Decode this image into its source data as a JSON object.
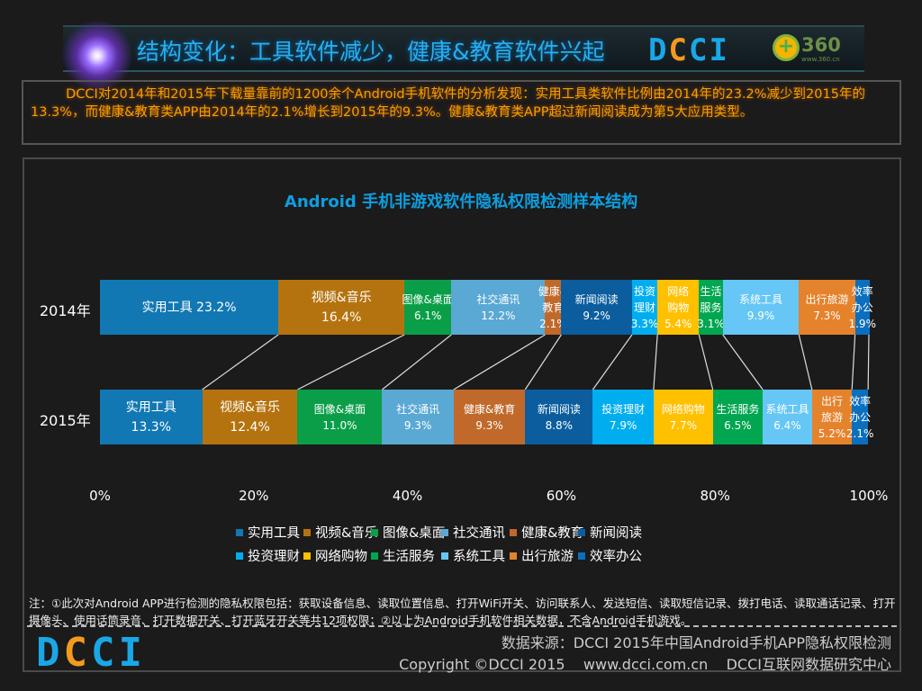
{
  "header": {
    "title": "结构变化：工具软件减少，健康&教育软件兴起",
    "logo_dcci": "DCCI",
    "logo_360": "360",
    "logo_360_url": "www.360.cn"
  },
  "summary": "DCCI对2014年和2015年下载量靠前的1200余个Android手机软件的分析发现：实用工具类软件比例由2014年的23.2%减少到2015年的13.3%，而健康&教育类APP由2014年的2.1%增长到2015年的9.3%。健康&教育类APP超过新闻阅读成为第5大应用类型。",
  "chart_data": {
    "type": "bar",
    "orientation": "horizontal-stacked-100",
    "title": "Android 手机非游戏软件隐私权限检测样本结构",
    "categories": [
      "2014年",
      "2015年"
    ],
    "xlim": [
      0,
      100
    ],
    "xticks": [
      "0%",
      "20%",
      "40%",
      "60%",
      "80%",
      "100%"
    ],
    "legend_position": "bottom",
    "grid": false,
    "series": [
      {
        "name": "实用工具",
        "color": "#1178b3",
        "values": [
          23.2,
          13.3
        ],
        "labels": [
          [
            "实用工具 23.2%"
          ],
          [
            "实用工具",
            "13.3%"
          ]
        ]
      },
      {
        "name": "视频&音乐",
        "color": "#b5730f",
        "values": [
          16.4,
          12.4
        ],
        "labels": [
          [
            "视频&音乐",
            "16.4%"
          ],
          [
            "视频&音乐",
            "12.4%"
          ]
        ]
      },
      {
        "name": "图像&桌面",
        "color": "#0b9e48",
        "values": [
          6.1,
          11.0
        ],
        "labels": [
          [
            "图像&桌面",
            "6.1%"
          ],
          [
            "图像&桌面",
            "11.0%"
          ]
        ]
      },
      {
        "name": "社交通讯",
        "color": "#5aa8d4",
        "values": [
          12.2,
          9.3
        ],
        "labels": [
          [
            "社交通讯",
            "12.2%"
          ],
          [
            "社交通讯",
            "9.3%"
          ]
        ]
      },
      {
        "name": "健康&教育",
        "color": "#c0692a",
        "values": [
          2.1,
          9.3
        ],
        "labels": [
          [
            "健康&",
            "教育",
            "2.1%"
          ],
          [
            "健康&教育",
            "9.3%"
          ]
        ]
      },
      {
        "name": "新闻阅读",
        "color": "#0b5d9e",
        "values": [
          9.2,
          8.8
        ],
        "labels": [
          [
            "新闻阅读",
            "9.2%"
          ],
          [
            "新闻阅读",
            "8.8%"
          ]
        ]
      },
      {
        "name": "投资理财",
        "color": "#00aeef",
        "values": [
          3.3,
          7.9
        ],
        "labels": [
          [
            "投资",
            "理财",
            "3.3%"
          ],
          [
            "投资理财",
            "7.9%"
          ]
        ]
      },
      {
        "name": "网络购物",
        "color": "#ffc000",
        "values": [
          5.4,
          7.7
        ],
        "labels": [
          [
            "网络",
            "购物",
            "5.4%"
          ],
          [
            "网络购物",
            "7.7%"
          ]
        ]
      },
      {
        "name": "生活服务",
        "color": "#00a650",
        "values": [
          3.1,
          6.5
        ],
        "labels": [
          [
            "生活",
            "服务",
            "3.1%"
          ],
          [
            "生活服务",
            "6.5%"
          ]
        ]
      },
      {
        "name": "系统工具",
        "color": "#66c6f5",
        "values": [
          9.9,
          6.4
        ],
        "labels": [
          [
            "系统工具",
            "9.9%"
          ],
          [
            "系统工具",
            "6.4%"
          ]
        ]
      },
      {
        "name": "出行旅游",
        "color": "#e5822c",
        "values": [
          7.3,
          5.2
        ],
        "labels": [
          [
            "出行旅游",
            "7.3%"
          ],
          [
            "出行",
            "旅游",
            "5.2%"
          ]
        ]
      },
      {
        "name": "效率办公",
        "color": "#0a6fbe",
        "values": [
          1.9,
          2.1
        ],
        "labels": [
          [
            "效率",
            "办公",
            "1.9%"
          ],
          [
            "效率",
            "办公",
            "2.1%"
          ]
        ]
      }
    ]
  },
  "note": "注：①此次对Android APP进行检测的隐私权限包括：获取设备信息、读取位置信息、打开WiFi开关、访问联系人、发送短信、读取短信记录、拨打电话、读取通话记录、打开摄像头、使用话筒录音、打开数据开关、打开蓝牙开关等共12项权限；②以上为Android手机软件相关数据，不含Android手机游戏。",
  "footer": {
    "logo": "DCCI",
    "source": "数据来源：DCCI 2015年中国Android手机APP隐私权限检测",
    "copyright": "Copyright ©DCCI 2015    www.dcci.com.cn    DCCI互联网数据研究中心"
  }
}
